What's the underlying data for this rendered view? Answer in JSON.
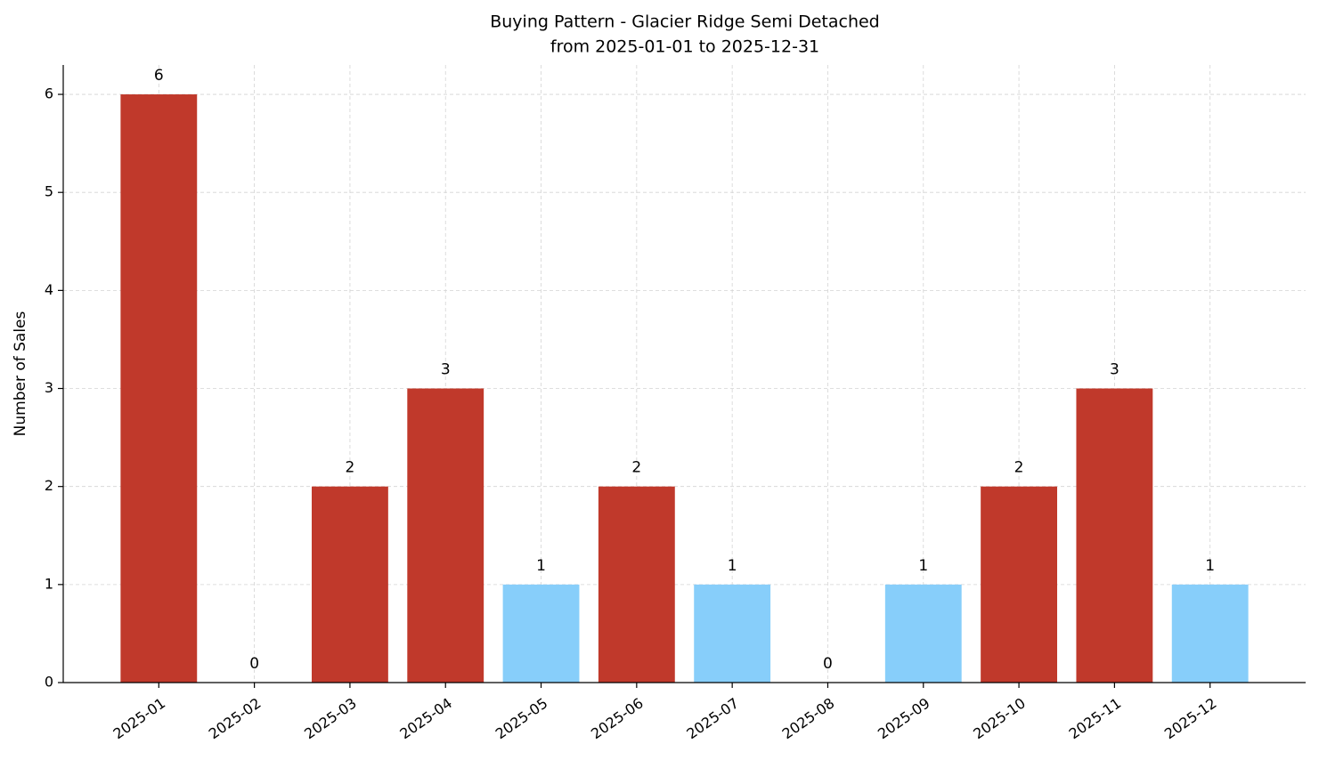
{
  "chart_data": {
    "type": "bar",
    "title": "Buying Pattern - Glacier Ridge Semi Detached",
    "subtitle": "from 2025-01-01 to 2025-12-31",
    "y_label": "Number of Sales",
    "categories": [
      "2025-01",
      "2025-02",
      "2025-03",
      "2025-04",
      "2025-05",
      "2025-06",
      "2025-07",
      "2025-08",
      "2025-09",
      "2025-10",
      "2025-11",
      "2025-12"
    ],
    "values": [
      6,
      0,
      2,
      3,
      1,
      2,
      1,
      0,
      1,
      2,
      3,
      1
    ],
    "colors": [
      "#c0392b",
      "#c0392b",
      "#c0392b",
      "#c0392b",
      "#87cefa",
      "#c0392b",
      "#87cefa",
      "#c0392b",
      "#87cefa",
      "#c0392b",
      "#c0392b",
      "#87cefa"
    ],
    "ylim": [
      0,
      6.3
    ],
    "yticks": [
      0,
      1,
      2,
      3,
      4,
      5,
      6
    ],
    "grid": true
  }
}
